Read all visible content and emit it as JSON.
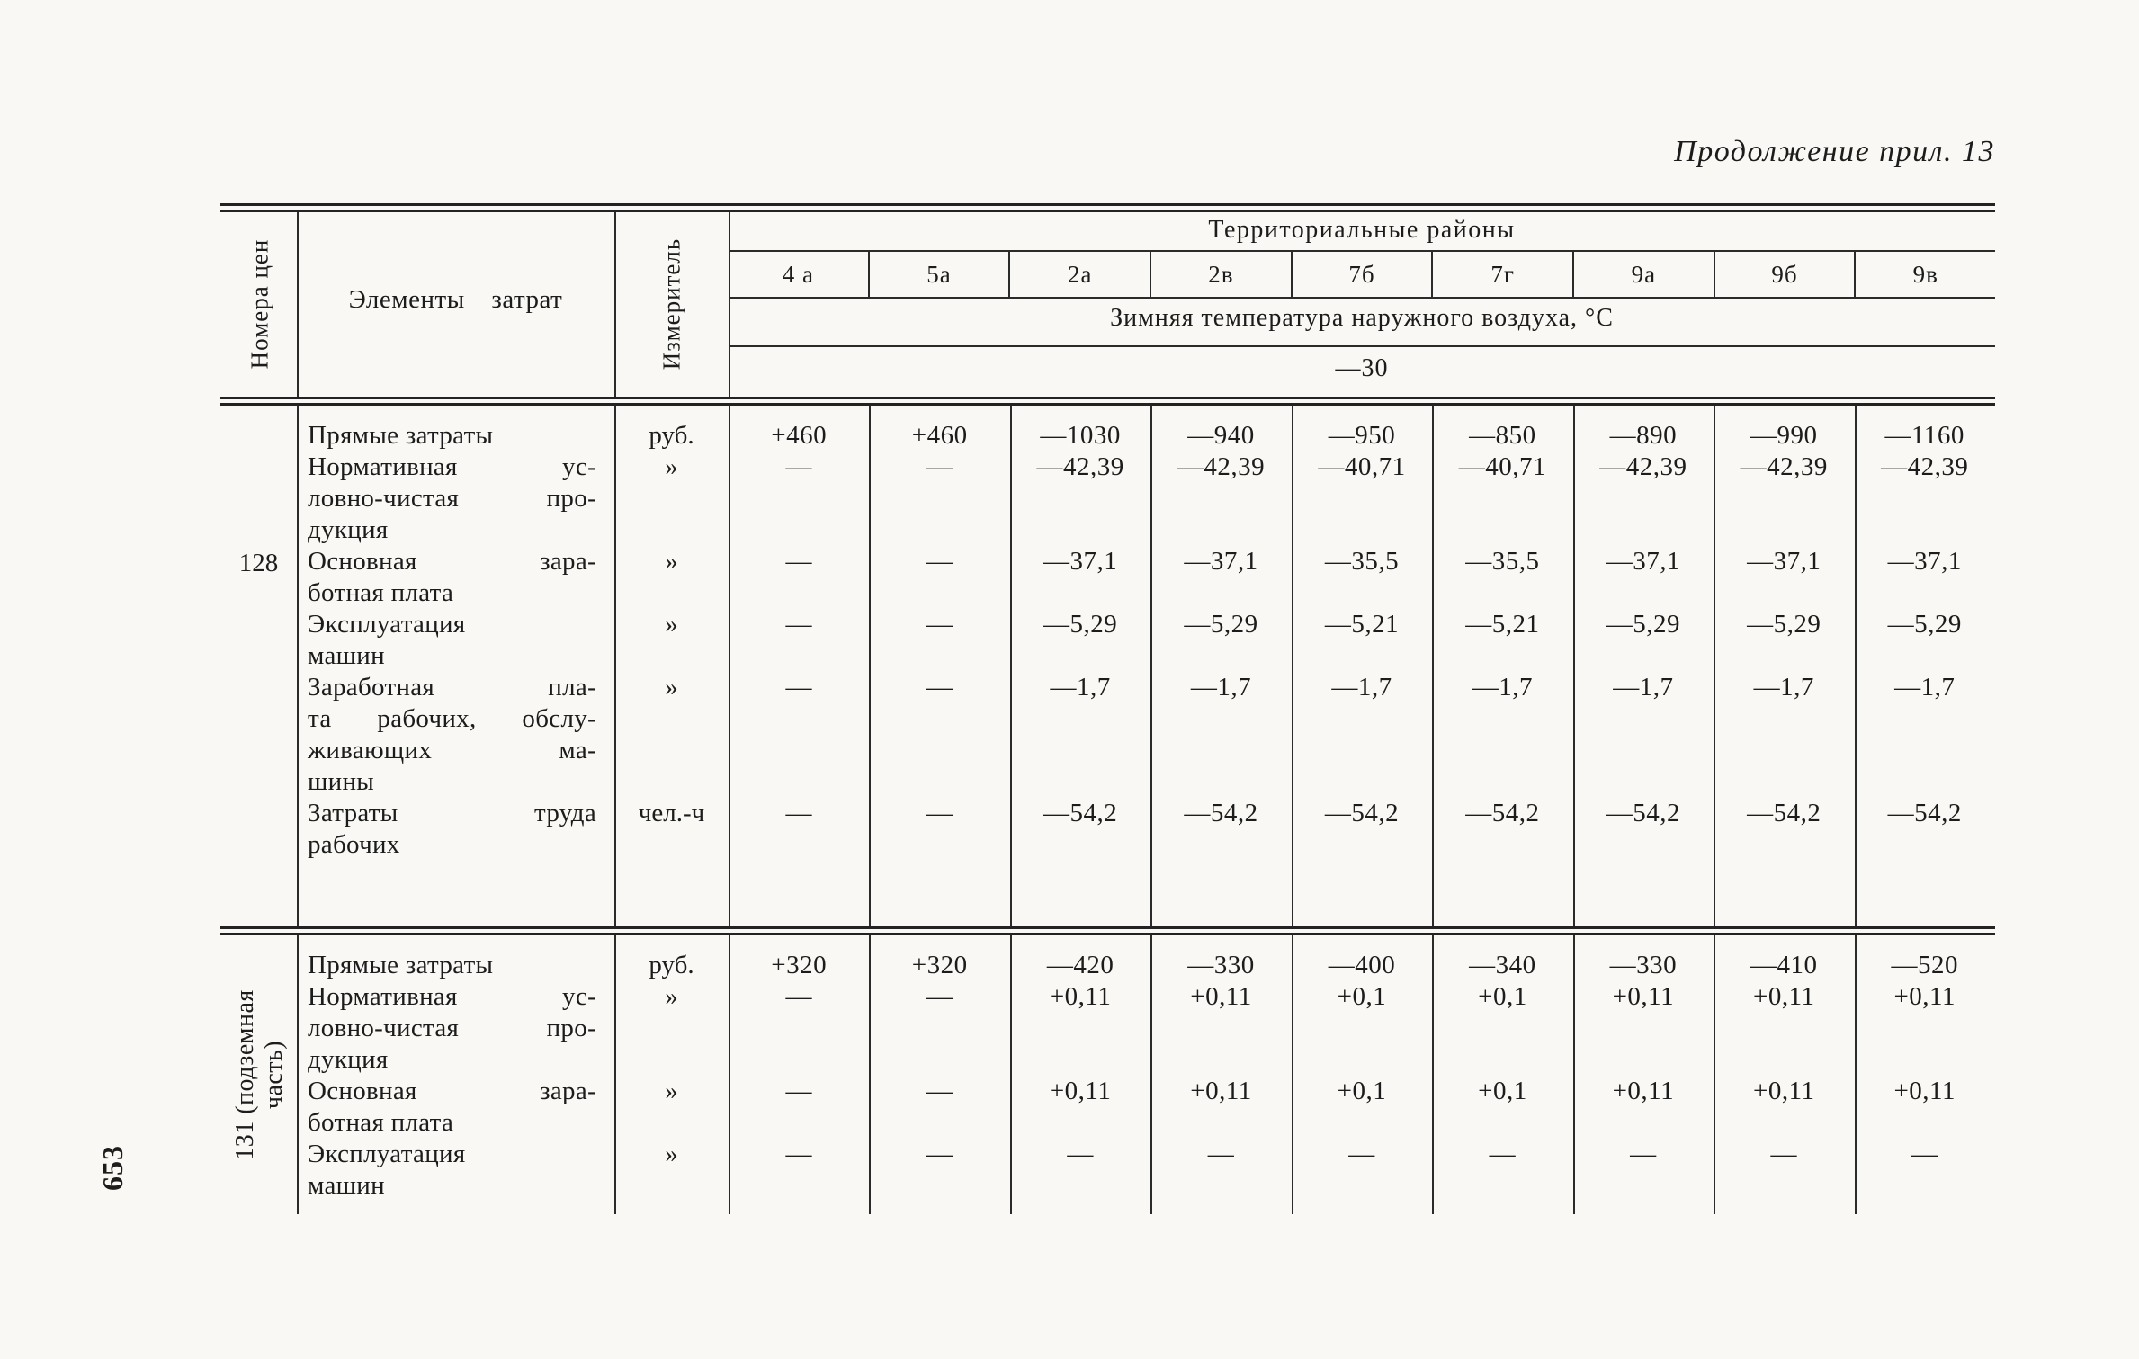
{
  "page_header": {
    "title": "Продолжение прил. 13"
  },
  "page_number": "653",
  "table": {
    "headers": {
      "price_numbers": "Номера цен",
      "cost_elements": "Элементы затрат",
      "measure": "Измеритель",
      "territorial_districts": "Территориальные районы",
      "regions": [
        "4 а",
        "5а",
        "2а",
        "2в",
        "7б",
        "7г",
        "9а",
        "9б",
        "9в"
      ],
      "temperature_label": "Зимняя температура наружного воздуха, °С",
      "temperature_value": "—30"
    },
    "groups": [
      {
        "number": "128",
        "number_style": "horizontal",
        "rows": [
          {
            "label_lines": [
              "Прямые затраты"
            ],
            "unit": "руб.",
            "values": [
              "+460",
              "+460",
              "—1030",
              "—940",
              "—950",
              "—850",
              "—890",
              "—990",
              "—1160"
            ]
          },
          {
            "label_lines": [
              "Нормативная ус-",
              "ловно-чистая про-",
              "дукция"
            ],
            "unit": "»",
            "values": [
              "—",
              "—",
              "—42,39",
              "—42,39",
              "—40,71",
              "—40,71",
              "—42,39",
              "—42,39",
              "—42,39"
            ]
          },
          {
            "label_lines": [
              "Основная зара-",
              "ботная плата"
            ],
            "unit": "»",
            "values": [
              "—",
              "—",
              "—37,1",
              "—37,1",
              "—35,5",
              "—35,5",
              "—37,1",
              "—37,1",
              "—37,1"
            ]
          },
          {
            "label_lines": [
              "Эксплуатация",
              "машин"
            ],
            "unit": "»",
            "values": [
              "—",
              "—",
              "—5,29",
              "—5,29",
              "—5,21",
              "—5,21",
              "—5,29",
              "—5,29",
              "—5,29"
            ]
          },
          {
            "label_lines": [
              "Заработная пла-",
              "та рабочих, обслу-",
              "живающих ма-",
              "шины"
            ],
            "unit": "»",
            "values": [
              "—",
              "—",
              "—1,7",
              "—1,7",
              "—1,7",
              "—1,7",
              "—1,7",
              "—1,7",
              "—1,7"
            ]
          },
          {
            "label_lines": [
              "Затраты труда",
              "рабочих"
            ],
            "unit": "чел.-ч",
            "values": [
              "—",
              "—",
              "—54,2",
              "—54,2",
              "—54,2",
              "—54,2",
              "—54,2",
              "—54,2",
              "—54,2"
            ]
          }
        ]
      },
      {
        "number": "131 (подземная часть)",
        "number_style": "rotated",
        "rows": [
          {
            "label_lines": [
              "Прямые затраты"
            ],
            "unit": "руб.",
            "values": [
              "+320",
              "+320",
              "—420",
              "—330",
              "—400",
              "—340",
              "—330",
              "—410",
              "—520"
            ]
          },
          {
            "label_lines": [
              "Нормативная ус-",
              "ловно-чистая про-",
              "дукция"
            ],
            "unit": "»",
            "values": [
              "—",
              "—",
              "+0,11",
              "+0,11",
              "+0,1",
              "+0,1",
              "+0,11",
              "+0,11",
              "+0,11"
            ]
          },
          {
            "label_lines": [
              "Основная зара-",
              "ботная плата"
            ],
            "unit": "»",
            "values": [
              "—",
              "—",
              "+0,11",
              "+0,11",
              "+0,1",
              "+0,1",
              "+0,11",
              "+0,11",
              "+0,11"
            ]
          },
          {
            "label_lines": [
              "Эксплуатация",
              "машин"
            ],
            "unit": "»",
            "values": [
              "—",
              "—",
              "—",
              "—",
              "—",
              "—",
              "—",
              "—",
              "—"
            ]
          }
        ]
      }
    ]
  }
}
